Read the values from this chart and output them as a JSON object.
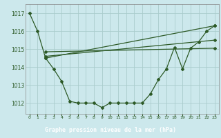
{
  "background_color": "#cce8ec",
  "plot_bg_color": "#cce8ec",
  "label_bar_color": "#2d6e3e",
  "grid_color": "#aacccc",
  "line_color": "#2d5a27",
  "xlabel": "Graphe pression niveau de la mer (hPa)",
  "xlabel_color": "#ffffff",
  "ylim": [
    1011.4,
    1017.5
  ],
  "xlim": [
    -0.5,
    23.5
  ],
  "yticks": [
    1012,
    1013,
    1014,
    1015,
    1016,
    1017
  ],
  "xticks": [
    0,
    1,
    2,
    3,
    4,
    5,
    6,
    7,
    8,
    9,
    10,
    11,
    12,
    13,
    14,
    15,
    16,
    17,
    18,
    19,
    20,
    21,
    22,
    23
  ],
  "series1_x": [
    0,
    1,
    2,
    3,
    4,
    5,
    6,
    7,
    8,
    9,
    10,
    11,
    12,
    13,
    14,
    15,
    16,
    17,
    18,
    19,
    20,
    21,
    22,
    23
  ],
  "series1_y": [
    1017.0,
    1016.0,
    1014.5,
    1013.9,
    1013.2,
    1012.1,
    1012.0,
    1012.0,
    1012.0,
    1011.75,
    1012.0,
    1012.0,
    1012.0,
    1012.0,
    1012.0,
    1012.5,
    1013.3,
    1013.9,
    1015.1,
    1013.9,
    1015.05,
    1015.4,
    1016.0,
    1016.3
  ],
  "series2_x": [
    2,
    23
  ],
  "series2_y": [
    1014.5,
    1016.3
  ],
  "series3_x": [
    2,
    23
  ],
  "series3_y": [
    1014.6,
    1015.5
  ],
  "series4_x": [
    2,
    23
  ],
  "series4_y": [
    1014.85,
    1015.05
  ]
}
